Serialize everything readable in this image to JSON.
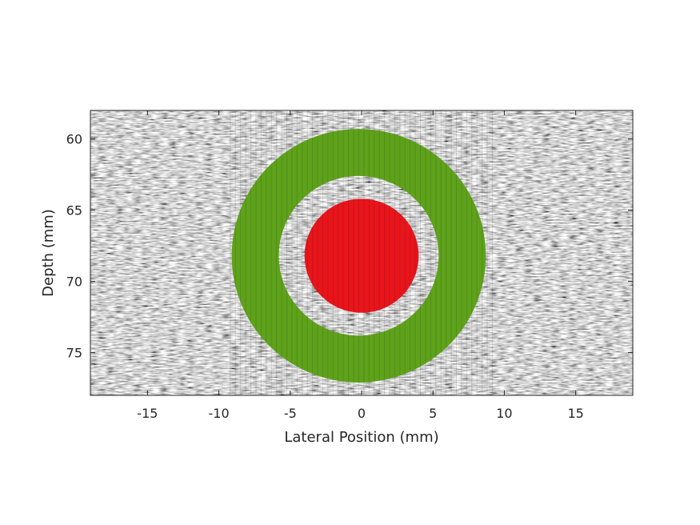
{
  "chart_data": {
    "type": "image-overlay",
    "title": "",
    "xlabel": "Lateral Position (mm)",
    "ylabel": "Depth (mm)",
    "xlim": [
      -19,
      19
    ],
    "ylim": [
      58,
      78
    ],
    "y_reversed": true,
    "x_ticks": [
      -15,
      -10,
      -5,
      0,
      5,
      10,
      15
    ],
    "y_ticks": [
      60,
      65,
      70,
      75
    ],
    "grid": false,
    "background": "grayscale ultrasound speckle",
    "regions": [
      {
        "name": "inclusion",
        "shape": "disk",
        "center": [
          0,
          68.2
        ],
        "radius": 4.0,
        "color": "#e8151b"
      },
      {
        "name": "background-ring",
        "shape": "annulus",
        "center": [
          -0.2,
          68.2
        ],
        "inner_radius": 5.6,
        "outer_radius": 8.9,
        "color": "#5ea21b"
      }
    ]
  }
}
